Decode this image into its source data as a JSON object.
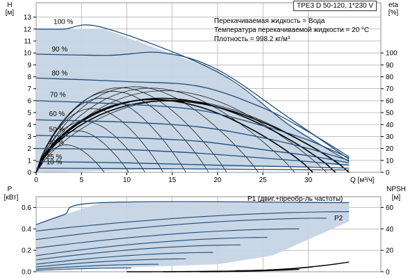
{
  "chart_data": [
    {
      "type": "line",
      "title": "TPE3 D 50-120, 1*230 V",
      "notes": [
        "Перекачиваемая жидкость = Вода",
        "Температура перекачиваемой жидкости = 20 °C",
        "Плотность = 998.2 кг/м³"
      ],
      "xlabel": "Q [м³/ч]",
      "x_ticks": [
        "0",
        "5",
        "10",
        "15",
        "20",
        "25",
        "30"
      ],
      "xlim": [
        0,
        38
      ],
      "y_left": {
        "label_top": "H",
        "label_unit": "[м]",
        "ticks": [
          "0",
          "1",
          "2",
          "3",
          "4",
          "5",
          "6",
          "7",
          "8",
          "9",
          "10",
          "11",
          "12",
          "13"
        ],
        "ylim": [
          0,
          13.5
        ]
      },
      "y_right": {
        "label_top": "eta",
        "label_unit": "[%]",
        "ticks": [
          "0",
          "10",
          "20",
          "30",
          "40",
          "50",
          "60",
          "70",
          "80",
          "90",
          "100"
        ],
        "ylim": [
          0,
          135
        ]
      },
      "speed_labels": [
        {
          "text": "100 %",
          "x": 1.0,
          "y": 12.3
        },
        {
          "text": "90 %",
          "x": 0.8,
          "y": 10.0
        },
        {
          "text": "80 %",
          "x": 0.8,
          "y": 8.0
        },
        {
          "text": "70 %",
          "x": 0.6,
          "y": 6.2
        },
        {
          "text": "60 %",
          "x": 0.5,
          "y": 4.6
        },
        {
          "text": "50 %",
          "x": 0.5,
          "y": 3.3
        },
        {
          "text": "40 %",
          "x": 0.4,
          "y": 2.2
        },
        {
          "text": "25 %",
          "x": 0.2,
          "y": 1.0
        },
        {
          "text": "10 %",
          "x": 0.2,
          "y": 0.55
        }
      ],
      "region_upper": [
        [
          0,
          12
        ],
        [
          7.5,
          12
        ],
        [
          20,
          8.5
        ],
        [
          28,
          4.0
        ],
        [
          34.5,
          0.8
        ]
      ],
      "region_lower": [
        [
          0,
          0
        ],
        [
          34.5,
          0.6
        ]
      ],
      "head_curves": [
        {
          "speed": 100,
          "points": [
            [
              0,
              12.0
            ],
            [
              3,
              12.0
            ],
            [
              7.5,
              12.1
            ],
            [
              20,
              8.4
            ],
            [
              28,
              3.9
            ],
            [
              34.5,
              0.9
            ]
          ]
        },
        {
          "speed": 90,
          "points": [
            [
              0,
              9.9
            ],
            [
              8,
              9.8
            ],
            [
              14,
              10.0
            ],
            [
              20,
              8.6
            ],
            [
              28,
              4.5
            ],
            [
              34.5,
              1.1
            ]
          ]
        },
        {
          "speed": 80,
          "points": [
            [
              0,
              7.9
            ],
            [
              10,
              7.6
            ],
            [
              18,
              7.2
            ],
            [
              25,
              5.4
            ],
            [
              30,
              3.4
            ],
            [
              34.5,
              1.3
            ]
          ]
        },
        {
          "speed": 70,
          "points": [
            [
              0,
              6.0
            ],
            [
              10,
              5.7
            ],
            [
              18,
              5.2
            ],
            [
              25,
              3.9
            ],
            [
              30,
              2.7
            ],
            [
              34.5,
              1.2
            ]
          ]
        },
        {
          "speed": 60,
          "points": [
            [
              0,
              4.4
            ],
            [
              10,
              4.2
            ],
            [
              18,
              3.8
            ],
            [
              25,
              2.9
            ],
            [
              30,
              2.0
            ],
            [
              34.5,
              1.0
            ]
          ]
        },
        {
          "speed": 50,
          "points": [
            [
              0,
              3.1
            ],
            [
              10,
              2.9
            ],
            [
              18,
              2.6
            ],
            [
              25,
              1.9
            ],
            [
              30,
              1.4
            ],
            [
              34.5,
              0.8
            ]
          ]
        },
        {
          "speed": 40,
          "points": [
            [
              0,
              2.0
            ],
            [
              10,
              1.9
            ],
            [
              18,
              1.6
            ],
            [
              25,
              1.2
            ],
            [
              30,
              0.9
            ],
            [
              34.5,
              0.6
            ]
          ]
        },
        {
          "speed": 25,
          "points": [
            [
              0,
              0.9
            ],
            [
              10,
              0.8
            ],
            [
              20,
              0.6
            ],
            [
              30,
              0.45
            ],
            [
              34.5,
              0.35
            ]
          ]
        },
        {
          "speed": 10,
          "points": [
            [
              0,
              0.35
            ],
            [
              15,
              0.3
            ],
            [
              34.5,
              0.2
            ]
          ]
        }
      ],
      "eta_arches": [
        {
          "x0": 0,
          "x1": 7.5,
          "peak": 2.3,
          "shift": 0.0
        },
        {
          "x0": 0,
          "x1": 10.2,
          "peak": 3.5,
          "shift": 0.1
        },
        {
          "x0": 0,
          "x1": 12.0,
          "peak": 4.3,
          "shift": 0.15
        },
        {
          "x0": 0,
          "x1": 14.0,
          "peak": 5.4,
          "shift": 0.2
        },
        {
          "x0": 0,
          "x1": 16.5,
          "peak": 6.3,
          "shift": 0.25
        },
        {
          "x0": 0,
          "x1": 19.0,
          "peak": 6.9,
          "shift": 0.3
        },
        {
          "x0": 0,
          "x1": 21.0,
          "peak": 7.2,
          "shift": 0.3
        },
        {
          "x0": 0,
          "x1": 24.5,
          "peak": 7.3,
          "shift": 0.35
        },
        {
          "x0": 0,
          "x1": 28.5,
          "peak": 7.2,
          "shift": 0.4
        },
        {
          "x0": 0,
          "x1": 32.0,
          "peak": 7.0,
          "shift": 0.45
        },
        {
          "x0": 0,
          "x1": 34.5,
          "peak": 6.2,
          "shift": 0.5
        }
      ],
      "eta_bold": [
        {
          "x1": 30.5,
          "peak": 6.1
        },
        {
          "x1": 33.0,
          "peak": 6.2
        },
        {
          "x1": 34.5,
          "peak": 6.0
        }
      ]
    },
    {
      "type": "line",
      "xlim": [
        0,
        38
      ],
      "y_left": {
        "label_top": "P",
        "label_unit": "[кВт]",
        "ticks": [
          "0.0",
          "0.2",
          "0.4",
          "0.6"
        ],
        "ylim": [
          0,
          0.7
        ]
      },
      "y_right": {
        "label_top": "NPSH",
        "label_unit": "[м]",
        "ticks": [
          "0",
          "20",
          "40",
          "60"
        ],
        "ylim": [
          0,
          70
        ]
      },
      "series_labels": [
        "P1 (двиг.+преобр-ль частоты)",
        "P2"
      ],
      "band_upper": [
        [
          0,
          0.44
        ],
        [
          3,
          0.53
        ],
        [
          7.3,
          0.645
        ],
        [
          34.5,
          0.645
        ]
      ],
      "band_lower": [
        [
          0,
          0.01
        ],
        [
          20,
          0.07
        ],
        [
          26,
          0.15
        ],
        [
          34.5,
          0.47
        ]
      ],
      "p1_curve": [
        [
          0,
          0.44
        ],
        [
          3,
          0.53
        ],
        [
          7.3,
          0.645
        ],
        [
          34.5,
          0.645
        ]
      ],
      "p2_curve": [
        [
          0,
          0.38
        ],
        [
          10,
          0.51
        ],
        [
          20,
          0.55
        ],
        [
          34.5,
          0.56
        ]
      ],
      "power_lines": [
        {
          "x1": 34.5,
          "y0": 0.38,
          "y1": 0.56
        },
        {
          "x1": 32.0,
          "y0": 0.3,
          "y1": 0.5
        },
        {
          "x1": 29.0,
          "y0": 0.22,
          "y1": 0.4
        },
        {
          "x1": 25.5,
          "y0": 0.15,
          "y1": 0.32
        },
        {
          "x1": 22.5,
          "y0": 0.11,
          "y1": 0.25
        },
        {
          "x1": 19.5,
          "y0": 0.07,
          "y1": 0.18
        },
        {
          "x1": 16.5,
          "y0": 0.045,
          "y1": 0.12
        },
        {
          "x1": 13.5,
          "y0": 0.025,
          "y1": 0.07
        },
        {
          "x1": 10.5,
          "y0": 0.012,
          "y1": 0.035
        }
      ],
      "npsh_curves": [
        {
          "x0": 10.0,
          "x1": 20.0,
          "y0": 0.0,
          "y1": 0.5
        },
        {
          "x0": 14.0,
          "x1": 25.0,
          "y0": 0.0,
          "y1": 1.2
        },
        {
          "x0": 18.0,
          "x1": 29.0,
          "y0": 0.0,
          "y1": 2.2
        },
        {
          "x0": 20.0,
          "x1": 30.5,
          "y0": 0.5,
          "y1": 4.5
        },
        {
          "x0": 22.0,
          "x1": 34.5,
          "y0": 1.0,
          "y1": 9.0
        }
      ]
    }
  ],
  "colors": {
    "fill": "#c5d4e4",
    "curve": "#1e4d7a",
    "eta": "#000000",
    "axis": "#000000",
    "frame": "#8a8a8a"
  }
}
